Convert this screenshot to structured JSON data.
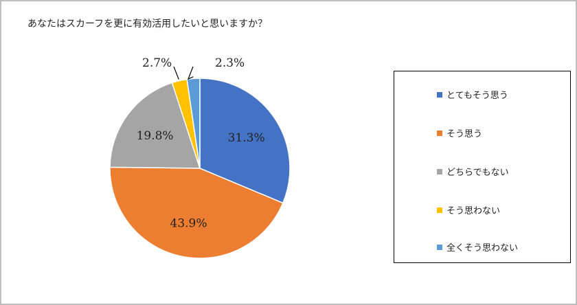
{
  "chart_data": {
    "type": "pie",
    "title": "あなたはスカーフを更に有効活用したいと思いますか？",
    "categories": [
      "とてもそう思う",
      "そう思う",
      "どちらでもない",
      "そう思わない",
      "全くそう思わない"
    ],
    "values": [
      31.3,
      43.9,
      19.8,
      2.7,
      2.3
    ],
    "value_labels": [
      "31.3%",
      "43.9%",
      "19.8%",
      "2.7%",
      "2.3%"
    ],
    "colors": [
      "#4472c4",
      "#ed7d31",
      "#a5a5a5",
      "#ffc000",
      "#5b9bd5"
    ],
    "start": "12-o'clock",
    "direction": "clockwise",
    "legend_position": "right"
  }
}
